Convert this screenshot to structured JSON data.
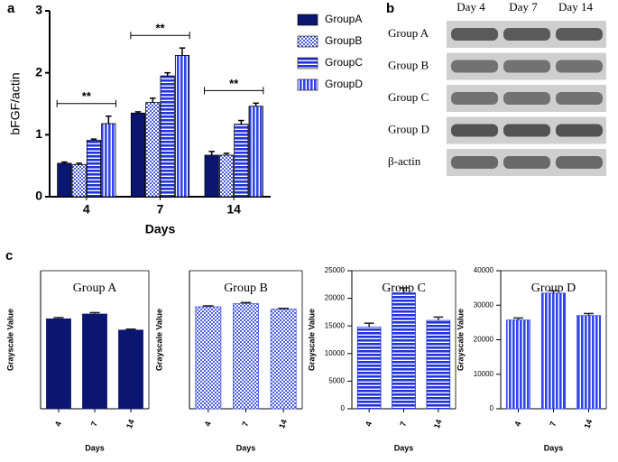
{
  "panel_labels": [
    "a",
    "b",
    "c"
  ],
  "chart_data": [
    {
      "type": "bar",
      "ylabel": "bFGF/actin",
      "xlabel": "Days",
      "categories": [
        "4",
        "7",
        "14"
      ],
      "ylim": [
        0,
        3
      ],
      "yticks": [
        0,
        1,
        2,
        3
      ],
      "legend": "right",
      "annotations": [
        "**",
        "**",
        "**"
      ],
      "series": [
        {
          "name": "GroupA",
          "color": "#0b1670",
          "pattern": "solid",
          "values": [
            0.54,
            1.35,
            0.67
          ],
          "errors": [
            0.02,
            0.02,
            0.06
          ]
        },
        {
          "name": "GroupB",
          "color": "#4a5de0",
          "pattern": "checker",
          "values": [
            0.52,
            1.52,
            0.67
          ],
          "errors": [
            0.02,
            0.07,
            0.03
          ]
        },
        {
          "name": "GroupC",
          "color": "#2233dd",
          "pattern": "hstripe",
          "values": [
            0.91,
            1.95,
            1.17
          ],
          "errors": [
            0.02,
            0.05,
            0.06
          ]
        },
        {
          "name": "GroupD",
          "color": "#3344ee",
          "pattern": "vstripe",
          "values": [
            1.18,
            2.28,
            1.46
          ],
          "errors": [
            0.12,
            0.12,
            0.05
          ]
        }
      ]
    },
    {
      "type": "bar",
      "title": "Group A",
      "ylabel": "Grayscale Value",
      "xlabel": "Days",
      "categories": [
        "4",
        "7",
        "14"
      ],
      "ylim": [
        0,
        8600
      ],
      "color": "#0b1670",
      "pattern": "solid",
      "values": [
        5600,
        5900,
        4900
      ],
      "errors": [
        80,
        90,
        60
      ]
    },
    {
      "type": "bar",
      "title": "Group B",
      "ylabel": "Grayscale Value",
      "xlabel": "Days",
      "categories": [
        "4",
        "7",
        "14"
      ],
      "ylim": [
        0,
        8800
      ],
      "color": "#4a5de0",
      "pattern": "checker",
      "values": [
        6500,
        6700,
        6350
      ],
      "errors": [
        60,
        70,
        50
      ]
    },
    {
      "type": "bar",
      "title": "Group C",
      "ylabel": "Grayscale Value",
      "xlabel": "Days",
      "categories": [
        "4",
        "7",
        "14"
      ],
      "ylim": [
        0,
        25000
      ],
      "yticks": [
        0,
        5000,
        10000,
        15000,
        20000,
        25000
      ],
      "color": "#2233dd",
      "pattern": "hstripe",
      "values": [
        14800,
        21000,
        16000
      ],
      "errors": [
        700,
        900,
        600
      ]
    },
    {
      "type": "bar",
      "title": "Group D",
      "ylabel": "Grayscale Value",
      "xlabel": "Days",
      "categories": [
        "4",
        "7",
        "14"
      ],
      "ylim": [
        0,
        40000
      ],
      "yticks": [
        0,
        10000,
        20000,
        30000,
        40000
      ],
      "color": "#3344ee",
      "pattern": "vstripe",
      "values": [
        25700,
        33500,
        27000
      ],
      "errors": [
        600,
        700,
        600
      ]
    }
  ],
  "blot": {
    "columns": [
      "Day 4",
      "Day 7",
      "Day 14"
    ],
    "rows": [
      "Group A",
      "Group B",
      "Group C",
      "Group D",
      "β-actin"
    ]
  }
}
